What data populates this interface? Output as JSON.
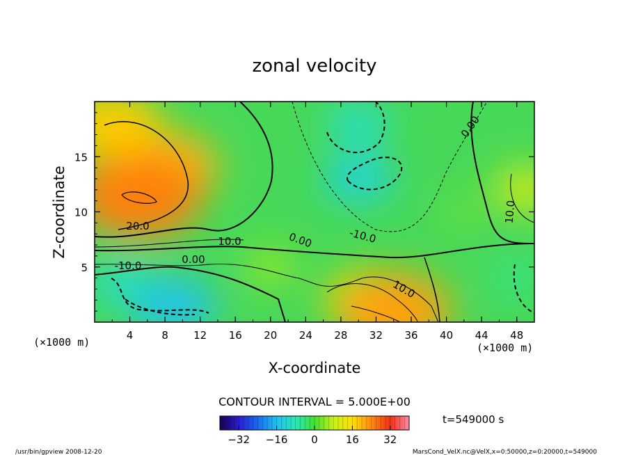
{
  "chart_data": {
    "type": "heatmap",
    "title": "zonal velocity",
    "xlabel": "X-coordinate",
    "ylabel": "Z-coordinate",
    "x_unit": "(×1000 m)",
    "y_unit": "(×1000 m)",
    "xlim": [
      0,
      50
    ],
    "ylim": [
      0,
      20
    ],
    "x_ticks": [
      4,
      8,
      12,
      16,
      20,
      24,
      28,
      32,
      36,
      40,
      44,
      48
    ],
    "y_ticks": [
      5,
      10,
      15
    ],
    "contour_interval_label": "CONTOUR INTERVAL = 5.000E+00",
    "contour_labels": [
      "20.0",
      "10.0",
      "0.00",
      "-10.0",
      "0.00",
      "-10.0",
      "10.0",
      "0.00",
      "10.0"
    ],
    "colorbar": {
      "min": -40,
      "max": 40,
      "ticks": [
        -32,
        -16,
        0,
        16,
        32
      ],
      "colors": [
        "#1a0050",
        "#2a1cd0",
        "#1a6af0",
        "#20c0f0",
        "#28e8b8",
        "#44e030",
        "#c8f018",
        "#ffe000",
        "#ff8c10",
        "#f03018",
        "#ff8aa8"
      ]
    },
    "time_label": "t=549000 s",
    "centers": [
      {
        "x": 8,
        "z": 14,
        "v": 20
      },
      {
        "x": 5,
        "z": 11.5,
        "v": 25
      },
      {
        "x": 3,
        "z": 3.5,
        "v": -10
      },
      {
        "x": 9,
        "z": 1.5,
        "v": -15
      },
      {
        "x": 30,
        "z": 13,
        "v": -12
      },
      {
        "x": 30,
        "z": 18,
        "v": -10
      },
      {
        "x": 31,
        "z": 2,
        "v": 15
      },
      {
        "x": 34,
        "z": 1,
        "v": 22
      },
      {
        "x": 49,
        "z": 12,
        "v": 10
      },
      {
        "x": 48,
        "z": 4,
        "v": -6
      },
      {
        "x": 2,
        "z": 18,
        "v": 18
      },
      {
        "x": 20,
        "z": 5,
        "v": 6
      },
      {
        "x": 42,
        "z": 10,
        "v": 3
      }
    ]
  },
  "footer": {
    "left": "/usr/bin/gpview   2008-12-20",
    "right": "MarsCond_VelX.nc@VelX,x=0:50000,z=0:20000,t=549000"
  }
}
